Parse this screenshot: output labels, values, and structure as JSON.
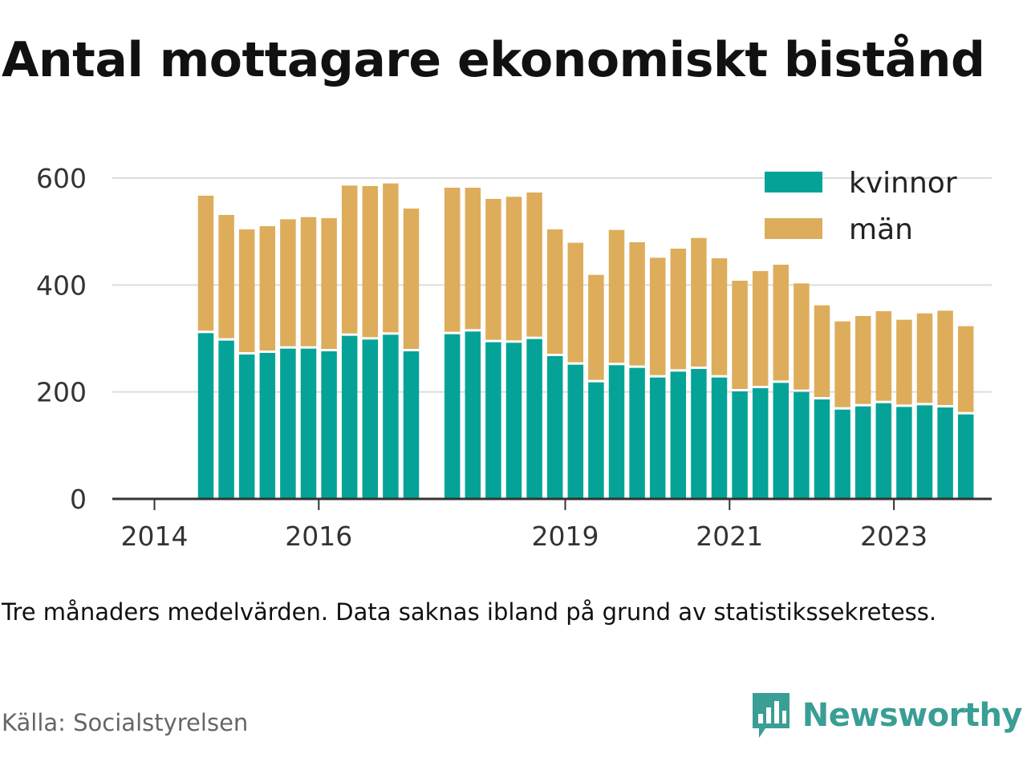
{
  "title": "Antal mottagare ekonomiskt bistånd",
  "note": "Tre månaders medelvärden. Data saknas ibland på grund av statistikssekretess.",
  "source": "Källa: Socialstyrelsen",
  "brand": {
    "name": "Newsworthy",
    "icon": "newsworthy-logo-icon",
    "color": "#3a9e95"
  },
  "colors": {
    "kvinnor": "#05a397",
    "man": "#ddad5b",
    "grid": "#dddddd",
    "axis": "#333333"
  },
  "chart_data": {
    "type": "bar",
    "stacked": true,
    "x_ticks": [
      "2014",
      "2016",
      "2019",
      "2021",
      "2023"
    ],
    "y_ticks": [
      "0",
      "200",
      "400",
      "600"
    ],
    "ylim": [
      0,
      650
    ],
    "legend": {
      "position": "top-right"
    },
    "grid": true,
    "series": [
      {
        "name": "kvinnor",
        "color": "#05a397",
        "values": [
          310,
          296,
          270,
          273,
          281,
          281,
          276,
          305,
          298,
          307,
          276,
          308,
          313,
          293,
          292,
          299,
          267,
          251,
          218,
          250,
          245,
          227,
          238,
          243,
          227,
          201,
          207,
          217,
          200,
          186,
          167,
          173,
          179,
          172,
          175,
          171,
          158
        ]
      },
      {
        "name": "män",
        "color": "#ddad5b",
        "values": [
          257,
          235,
          234,
          237,
          242,
          246,
          249,
          281,
          287,
          283,
          267,
          274,
          269,
          268,
          273,
          274,
          237,
          228,
          201,
          253,
          235,
          224,
          230,
          245,
          223,
          207,
          219,
          221,
          203,
          176,
          165,
          169,
          172,
          163,
          172,
          181,
          165
        ]
      }
    ],
    "periods": [
      "2014-Q3",
      "2014-Q4",
      "2015-Q1",
      "2015-Q2",
      "2015-Q3",
      "2015-Q4",
      "2016-Q1",
      "2016-Q2",
      "2016-Q3",
      "2016-Q4",
      "2017-Q1",
      "2017-Q3",
      "2017-Q4",
      "2018-Q1",
      "2018-Q2",
      "2018-Q3",
      "2018-Q4",
      "2019-Q1",
      "2019-Q2",
      "2019-Q3",
      "2019-Q4",
      "2020-Q1",
      "2020-Q2",
      "2020-Q3",
      "2020-Q4",
      "2021-Q1",
      "2021-Q2",
      "2021-Q3",
      "2021-Q4",
      "2022-Q1",
      "2022-Q2",
      "2022-Q3",
      "2022-Q4",
      "2023-Q1",
      "2023-Q2",
      "2023-Q3",
      "2023-Q4"
    ]
  }
}
